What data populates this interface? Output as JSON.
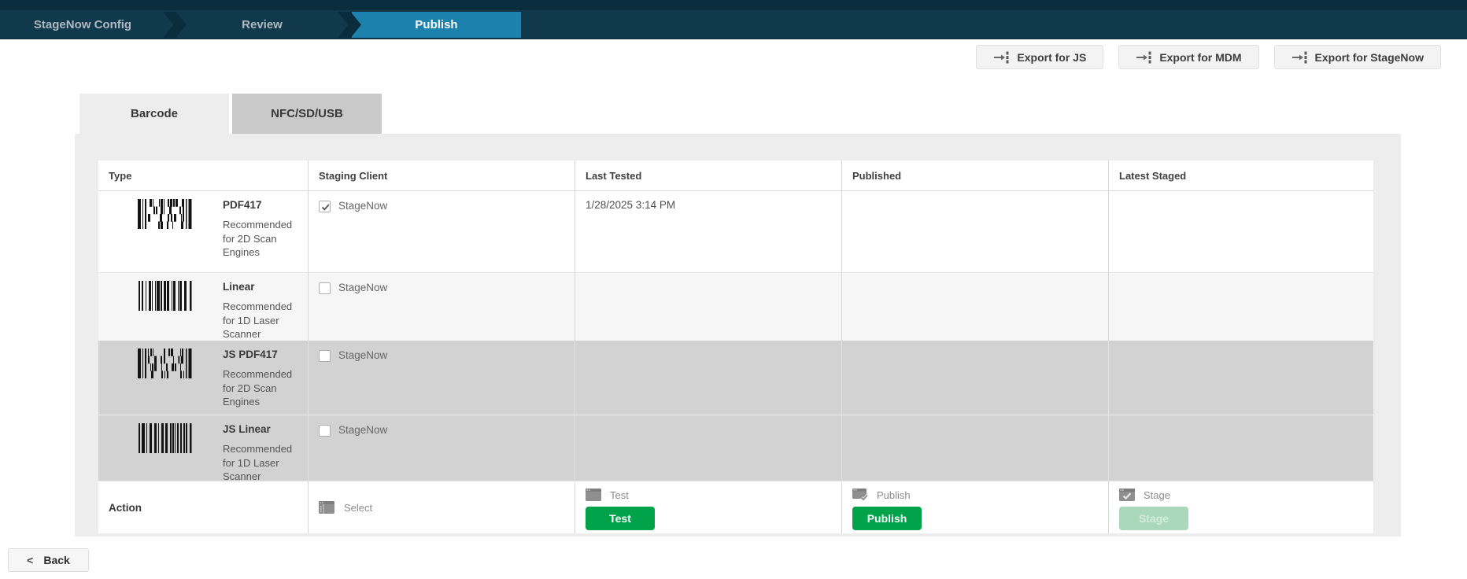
{
  "nav": {
    "steps": [
      {
        "label": "StageNow Config",
        "active": false
      },
      {
        "label": "Review",
        "active": false
      },
      {
        "label": "Publish",
        "active": true
      }
    ]
  },
  "export_buttons": [
    {
      "label": "Export for JS"
    },
    {
      "label": "Export for MDM"
    },
    {
      "label": "Export for StageNow"
    }
  ],
  "tabs": [
    {
      "label": "Barcode",
      "active": true
    },
    {
      "label": "NFC/SD/USB",
      "active": false
    }
  ],
  "table": {
    "headers": [
      "Type",
      "Staging Client",
      "Last Tested",
      "Published",
      "Latest Staged"
    ],
    "rows": [
      {
        "name": "PDF417",
        "description": "Recommended for 2D Scan Engines",
        "barcode": "pdf417",
        "staging_client": "StageNow",
        "checked": true,
        "last_tested": "1/28/2025 3:14 PM",
        "published": "",
        "latest_staged": "",
        "shade": "white"
      },
      {
        "name": "Linear",
        "description": "Recommended for 1D Laser Scanner",
        "barcode": "linear",
        "staging_client": "StageNow",
        "checked": false,
        "last_tested": "",
        "published": "",
        "latest_staged": "",
        "shade": "light"
      },
      {
        "name": "JS PDF417",
        "description": "Recommended for 2D Scan Engines",
        "barcode": "pdf417",
        "staging_client": "StageNow",
        "checked": false,
        "last_tested": "",
        "published": "",
        "latest_staged": "",
        "shade": "dark"
      },
      {
        "name": "JS Linear",
        "description": "Recommended for 1D Laser Scanner",
        "barcode": "linear",
        "staging_client": "StageNow",
        "checked": false,
        "last_tested": "",
        "published": "",
        "latest_staged": "",
        "shade": "dark"
      }
    ],
    "action_row": {
      "label": "Action",
      "select": {
        "label": "Select"
      },
      "test": {
        "label": "Test",
        "button": "Test"
      },
      "publish": {
        "label": "Publish",
        "button": "Publish"
      },
      "stage": {
        "label": "Stage",
        "button": "Stage",
        "disabled": true
      }
    }
  },
  "back_button": {
    "chevron": "<",
    "label": "Back"
  },
  "colors": {
    "green": "#00a24a",
    "nav_active_blue": "#1d81ae",
    "stage_disabled_green": "#a9d9ba"
  }
}
